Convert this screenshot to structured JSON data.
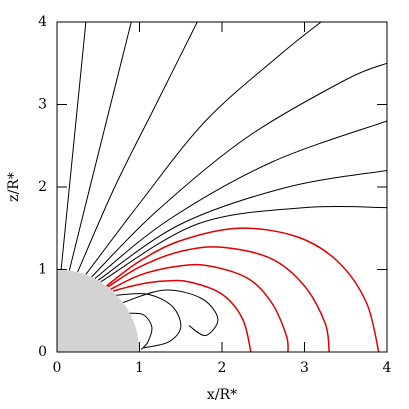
{
  "chart_data": {
    "type": "line",
    "xlabel": "x/R*",
    "ylabel": "z/R*",
    "xlim": [
      0,
      4
    ],
    "ylim": [
      0,
      4
    ],
    "xticks": [
      0,
      1,
      2,
      3,
      4
    ],
    "yticks": [
      0,
      1,
      2,
      3,
      4
    ],
    "shaded_region": {
      "radius": 1,
      "color": "#d3d3d3"
    },
    "series": [
      {
        "color": "#000000",
        "x": [
          0.05,
          0.15,
          0.25,
          0.35
        ],
        "values": [
          1.0,
          2.0,
          3.0,
          4.0
        ]
      },
      {
        "color": "#000000",
        "x": [
          0.15,
          0.4,
          0.65,
          0.9
        ],
        "values": [
          0.99,
          2.0,
          3.0,
          4.0
        ]
      },
      {
        "color": "#000000",
        "x": [
          0.25,
          0.7,
          1.2,
          1.7
        ],
        "values": [
          0.97,
          2.0,
          3.0,
          4.0
        ]
      },
      {
        "color": "#000000",
        "x": [
          0.35,
          1.0,
          1.8,
          2.7,
          3.2
        ],
        "values": [
          0.94,
          1.8,
          2.8,
          3.6,
          4.0
        ]
      },
      {
        "color": "#000000",
        "x": [
          0.42,
          1.2,
          2.3,
          3.5,
          4.0
        ],
        "values": [
          0.91,
          1.7,
          2.6,
          3.3,
          3.5
        ]
      },
      {
        "color": "#000000",
        "x": [
          0.46,
          1.35,
          2.6,
          4.0
        ],
        "values": [
          0.89,
          1.6,
          2.3,
          2.8
        ]
      },
      {
        "color": "#000000",
        "x": [
          0.5,
          1.5,
          2.8,
          4.0
        ],
        "values": [
          0.87,
          1.55,
          2.0,
          2.2
        ]
      },
      {
        "color": "#000000",
        "x": [
          0.53,
          1.7,
          3.0,
          4.0
        ],
        "values": [
          0.85,
          1.55,
          1.75,
          1.75
        ]
      },
      {
        "color": "#000000",
        "x": [
          0.72,
          1.1,
          1.4,
          1.5,
          1.35,
          1.05
        ],
        "values": [
          0.69,
          0.7,
          0.55,
          0.3,
          0.12,
          0.05
        ]
      },
      {
        "color": "#000000",
        "x": [
          0.8,
          1.3,
          1.75,
          1.95,
          1.8,
          1.6
        ],
        "values": [
          0.6,
          0.75,
          0.65,
          0.4,
          0.2,
          0.32
        ]
      },
      {
        "color": "#000000",
        "x": [
          0.88,
          1.05,
          1.15,
          1.1,
          1.02
        ],
        "values": [
          0.47,
          0.45,
          0.3,
          0.12,
          0.03
        ]
      },
      {
        "color": "#e00000",
        "x": [
          0.68,
          1.0,
          1.3,
          1.6,
          2.0,
          2.25,
          2.35
        ],
        "values": [
          0.74,
          0.82,
          0.86,
          0.85,
          0.7,
          0.4,
          0.0
        ]
      },
      {
        "color": "#e00000",
        "x": [
          0.65,
          1.0,
          1.4,
          1.8,
          2.3,
          2.6,
          2.78,
          2.8
        ],
        "values": [
          0.76,
          0.93,
          1.03,
          1.05,
          0.9,
          0.6,
          0.2,
          0.0
        ]
      },
      {
        "color": "#e00000",
        "x": [
          0.62,
          1.0,
          1.5,
          2.0,
          2.6,
          3.0,
          3.25,
          3.3
        ],
        "values": [
          0.79,
          1.03,
          1.22,
          1.27,
          1.13,
          0.8,
          0.35,
          0.0
        ]
      },
      {
        "color": "#e00000",
        "x": [
          0.6,
          1.0,
          1.5,
          2.2,
          2.9,
          3.4,
          3.75,
          3.9
        ],
        "values": [
          0.8,
          1.1,
          1.35,
          1.5,
          1.4,
          1.1,
          0.6,
          0.0
        ]
      }
    ]
  }
}
